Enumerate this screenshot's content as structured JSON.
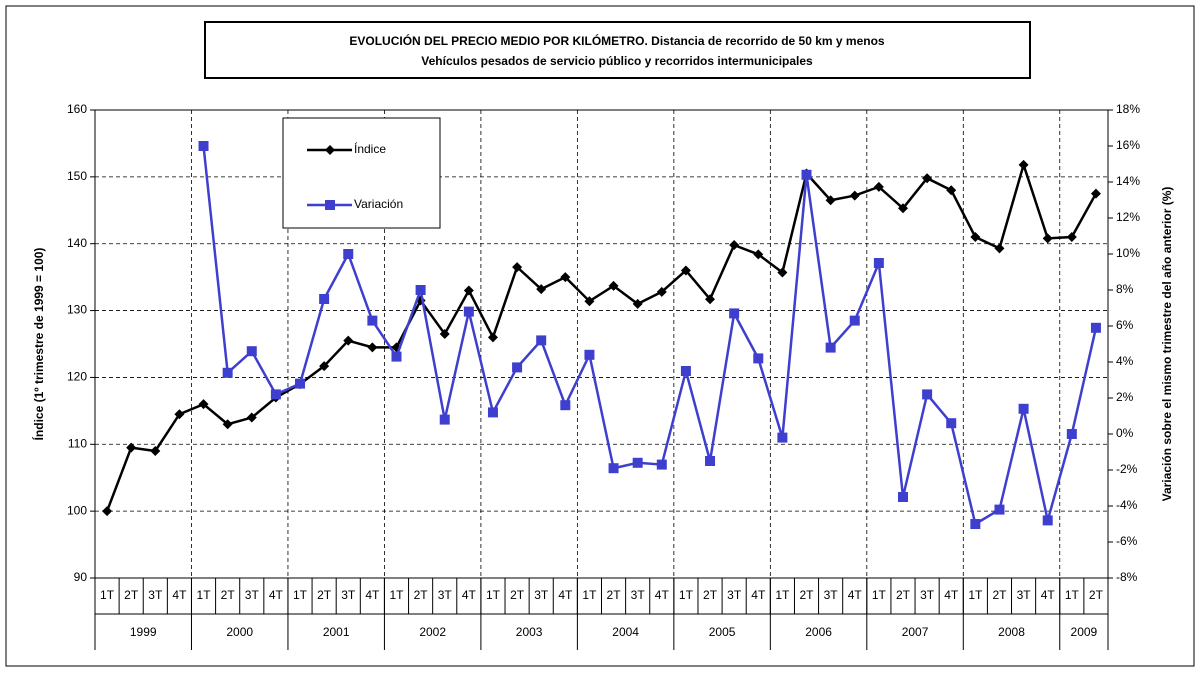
{
  "chart_data": {
    "type": "line",
    "title": [
      "EVOLUCIÓN DEL PRECIO MEDIO POR KILÓMETRO. Distancia de recorrido de 50 km y menos",
      "Vehículos pesados de servicio público y recorridos intermunicipales"
    ],
    "y_label": "Índice (1º trimestre de 1999 = 100)",
    "y2_label": "Variación sobre el mismo trimestre del año anterior (%)",
    "categories": [
      "1T",
      "2T",
      "3T",
      "4T",
      "1T",
      "2T",
      "3T",
      "4T",
      "1T",
      "2T",
      "3T",
      "4T",
      "1T",
      "2T",
      "3T",
      "4T",
      "1T",
      "2T",
      "3T",
      "4T",
      "1T",
      "2T",
      "3T",
      "4T",
      "1T",
      "2T",
      "3T",
      "4T",
      "1T",
      "2T",
      "3T",
      "4T",
      "1T",
      "2T",
      "3T",
      "4T",
      "1T",
      "2T",
      "3T",
      "4T",
      "1T",
      "2T"
    ],
    "years": [
      "1999",
      "2000",
      "2001",
      "2002",
      "2003",
      "2004",
      "2005",
      "2006",
      "2007",
      "2008",
      "2009"
    ],
    "series": [
      {
        "name": "Índice",
        "color": "#000000",
        "marker": "diamond",
        "values": [
          100,
          109.5,
          109,
          114.5,
          116,
          113,
          114,
          117,
          119,
          121.7,
          125.5,
          124.5,
          124.5,
          131.5,
          126.5,
          133,
          126,
          136.5,
          133.2,
          135,
          131.4,
          133.7,
          131,
          132.8,
          136,
          131.7,
          139.8,
          138.4,
          135.7,
          150.5,
          146.5,
          147.2,
          148.5,
          145.3,
          149.8,
          148,
          141,
          139.3,
          151.8,
          140.8,
          141,
          147.5
        ]
      },
      {
        "name": "Variación",
        "color": "#3f3fcf",
        "marker": "square",
        "axis": "y2",
        "values": [
          null,
          null,
          null,
          null,
          16,
          3.4,
          4.6,
          2.2,
          2.8,
          7.5,
          10,
          6.3,
          4.3,
          8,
          0.8,
          6.8,
          1.2,
          3.7,
          5.2,
          1.6,
          4.4,
          -1.9,
          -1.6,
          -1.7,
          3.5,
          -1.5,
          6.7,
          4.2,
          -0.2,
          14.4,
          4.8,
          6.3,
          9.5,
          -3.5,
          2.2,
          0.6,
          -5,
          -4.2,
          1.4,
          -4.8,
          0,
          5.9
        ]
      }
    ],
    "ylim": [
      90,
      160
    ],
    "yticks": [
      90,
      100,
      110,
      120,
      130,
      140,
      150,
      160
    ],
    "y2lim": [
      -8,
      18
    ],
    "y2ticks": [
      {
        "value": -8,
        "label": "-8%"
      },
      {
        "value": -6,
        "label": "-6%"
      },
      {
        "value": -4,
        "label": "-4%"
      },
      {
        "value": -2,
        "label": "-2%"
      },
      {
        "value": 0,
        "label": "0%"
      },
      {
        "value": 2,
        "label": "2%"
      },
      {
        "value": 4,
        "label": "4%"
      },
      {
        "value": 6,
        "label": "6%"
      },
      {
        "value": 8,
        "label": "8%"
      },
      {
        "value": 10,
        "label": "10%"
      },
      {
        "value": 12,
        "label": "12%"
      },
      {
        "value": 14,
        "label": "14%"
      },
      {
        "value": 16,
        "label": "16%"
      },
      {
        "value": 18,
        "label": "18%"
      }
    ],
    "grid": true
  }
}
